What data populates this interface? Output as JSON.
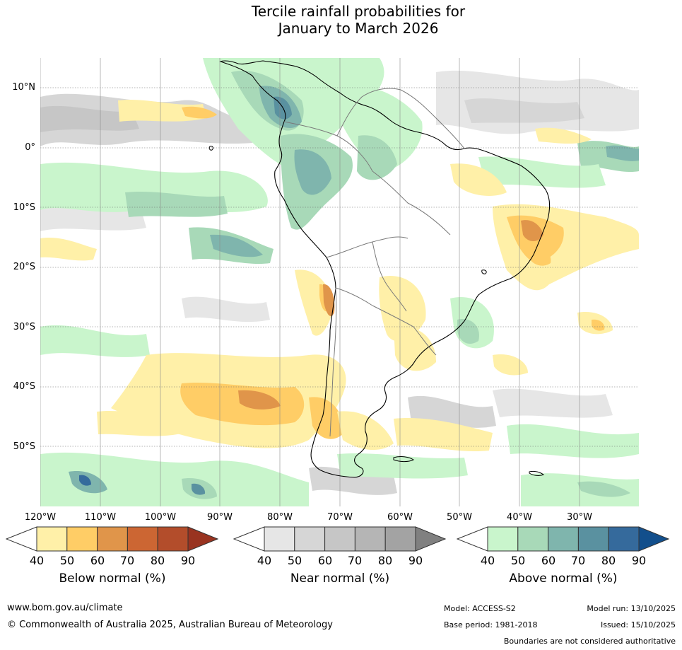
{
  "title": {
    "line1": "Tercile rainfall probabilities for",
    "line2": "January to March 2026"
  },
  "map": {
    "region": "South America",
    "lat_labels": [
      "10°N",
      "0°",
      "10°S",
      "20°S",
      "30°S",
      "40°S",
      "50°S"
    ],
    "lon_labels": [
      "120°W",
      "110°W",
      "100°W",
      "90°W",
      "80°W",
      "70°W",
      "60°W",
      "50°W",
      "40°W",
      "30°W"
    ]
  },
  "legend": {
    "ticks": [
      "40",
      "50",
      "60",
      "70",
      "80",
      "90"
    ],
    "below": {
      "title": "Below normal (%)",
      "colors": [
        "#fff0a8",
        "#ffcd66",
        "#e0954a",
        "#cc6633",
        "#b34d2b",
        "#993320"
      ]
    },
    "near": {
      "title": "Near normal (%)",
      "colors": [
        "#e6e6e6",
        "#d6d6d6",
        "#c6c6c6",
        "#b5b5b5",
        "#a3a3a3",
        "#808080"
      ]
    },
    "above": {
      "title": "Above normal (%)",
      "colors": [
        "#c9f5cc",
        "#a8d9b8",
        "#7fb5ad",
        "#5a91a0",
        "#356a9c",
        "#124f8c"
      ]
    }
  },
  "footer": {
    "website": "www.bom.gov.au/climate",
    "copyright": "© Commonwealth of Australia 2025, Australian Bureau of Meteorology",
    "model": "Model: ACCESS-S2",
    "base_period": "Base period: 1981-2018",
    "model_run": "Model run: 13/10/2025",
    "issued": "Issued: 15/10/2025",
    "disclaimer": "Boundaries are not considered authoritative"
  }
}
